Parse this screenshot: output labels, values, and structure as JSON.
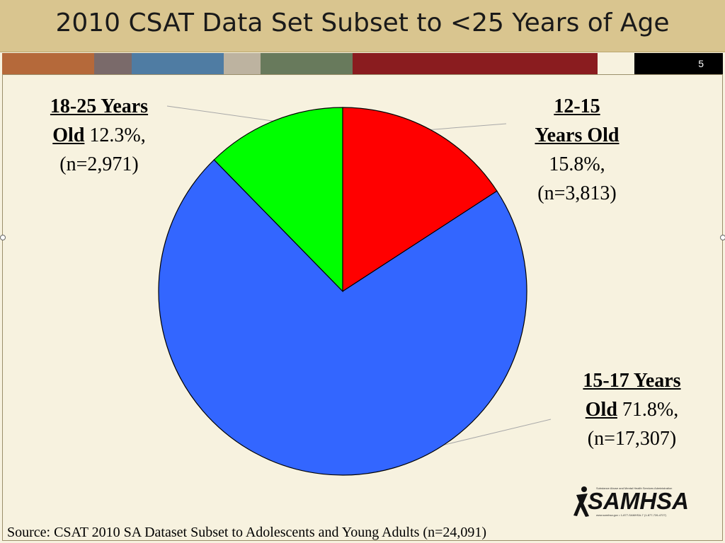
{
  "title": "2010 CSAT Data Set Subset to <25 Years of Age",
  "slide_number": "5",
  "stripe_colors": [
    "#b5693a",
    "#7a6a6a",
    "#4f7ca3",
    "#bdb3a0",
    "#687a5c",
    "#8a1c1f",
    "#f7f2df",
    "#000000"
  ],
  "chart_data": {
    "type": "pie",
    "title": "",
    "slices": [
      {
        "header": "12-15 Years Old",
        "header_line1": "12-15",
        "header_line2": "Years Old",
        "percent_text": "15.8%,",
        "n_text": "(n=3,813)",
        "value": 15.8,
        "color": "#ff0000"
      },
      {
        "header": "15-17 Years Old",
        "header_line1": "15-17 Years",
        "header_line2": "Old",
        "percent_text": "71.8%,",
        "n_text": "(n=17,307)",
        "value": 71.8,
        "color": "#3366ff"
      },
      {
        "header": "18-25 Years Old",
        "header_line1": "18-25 Years",
        "header_line2": "Old",
        "percent_text": "12.3%,",
        "n_text": "(n=2,971)",
        "value": 12.3,
        "color": "#00ff00"
      }
    ]
  },
  "source": "Source: CSAT 2010 SA Dataset Subset to Adolescents and Young Adults (n=24,091)",
  "logo": {
    "name": "SAMHSA",
    "tagline": "Substance Abuse and Mental Health Services Administration",
    "contact": "www.samhsa.gov • 1-877-SAMHSA-7 (1-877-726-4727)"
  }
}
